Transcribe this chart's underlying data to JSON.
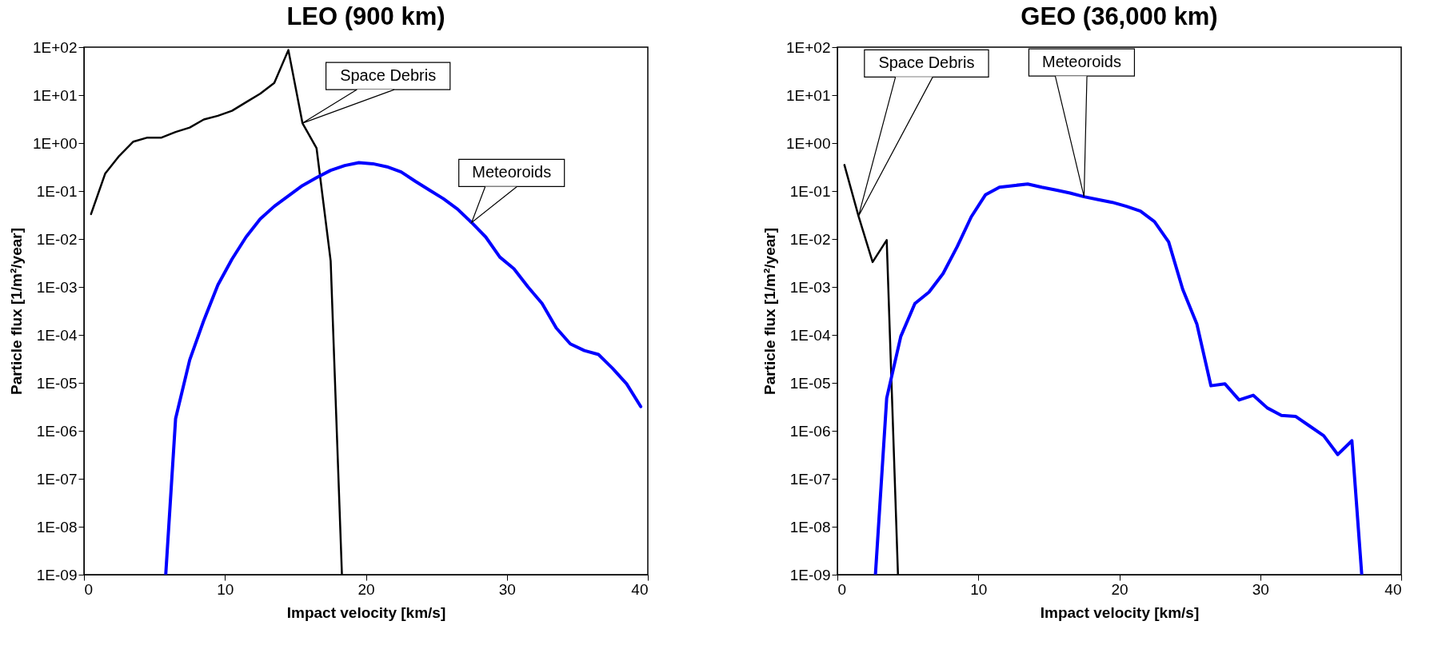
{
  "chart_data": [
    {
      "type": "line",
      "title": "LEO (900 km)",
      "xlabel": "Impact velocity [km/s]",
      "ylabel": "Particle flux [1/m²/year]",
      "log": true,
      "grid": false,
      "marker": "none",
      "line_style": "solid",
      "xlim": [
        0,
        40
      ],
      "xticks": [
        0,
        10,
        20,
        30,
        40
      ],
      "ylim": [
        1e-09,
        100
      ],
      "yticks": [
        {
          "value": 1e-09,
          "label": "1E-09"
        },
        {
          "value": 1e-08,
          "label": "1E-08"
        },
        {
          "value": 1e-07,
          "label": "1E-07"
        },
        {
          "value": 1e-06,
          "label": "1E-06"
        },
        {
          "value": 1e-05,
          "label": "1E-05"
        },
        {
          "value": 0.0001,
          "label": "1E-04"
        },
        {
          "value": 0.001,
          "label": "1E-03"
        },
        {
          "value": 0.01,
          "label": "1E-02"
        },
        {
          "value": 0.1,
          "label": "1E-01"
        },
        {
          "value": 1,
          "label": "1E+00"
        },
        {
          "value": 10,
          "label": "1E+01"
        },
        {
          "value": 100,
          "label": "1E+02"
        }
      ],
      "series": [
        {
          "name": "Space Debris",
          "color": "#000000",
          "x": [
            0.5,
            1.5,
            2.5,
            3.5,
            4.5,
            5.5,
            6.5,
            7.5,
            8.5,
            9.5,
            10.5,
            11.5,
            12.5,
            13.5,
            14.5,
            15.5,
            16.5,
            17.5,
            18.3
          ],
          "values": [
            0.033,
            0.23,
            0.54,
            1.07,
            1.3,
            1.3,
            1.7,
            2.1,
            3.1,
            3.7,
            4.7,
            7.1,
            10.7,
            18,
            87,
            2.6,
            0.78,
            0.0035,
            1e-09
          ]
        },
        {
          "name": "Meteoroids",
          "color": "#0000ff",
          "x": [
            5.8,
            6.5,
            7.5,
            8.5,
            9.5,
            10.5,
            11.5,
            12.5,
            13.5,
            14.5,
            15.5,
            16.5,
            17.5,
            18.5,
            19.5,
            20.5,
            21.5,
            22.5,
            23.5,
            24.5,
            25.5,
            26.5,
            27.5,
            28.5,
            29.5,
            30.5,
            31.5,
            32.5,
            33.5,
            34.5,
            35.5,
            36.5,
            37.5,
            38.5,
            39.5
          ],
          "values": [
            1e-09,
            1.8e-06,
            3e-05,
            0.0002,
            0.0011,
            0.0038,
            0.011,
            0.026,
            0.048,
            0.079,
            0.13,
            0.19,
            0.27,
            0.34,
            0.39,
            0.37,
            0.32,
            0.25,
            0.16,
            0.105,
            0.069,
            0.042,
            0.022,
            0.011,
            0.0042,
            0.0024,
            0.001,
            0.00045,
            0.00014,
            6.5e-05,
            4.7e-05,
            3.9e-05,
            2e-05,
            9.5e-06,
            3.2e-06
          ]
        }
      ]
    },
    {
      "type": "line",
      "title": "GEO (36,000 km)",
      "xlabel": "Impact velocity [km/s]",
      "ylabel": "Particle flux [1/m²/year]",
      "log": true,
      "grid": false,
      "marker": "none",
      "line_style": "solid",
      "xlim": [
        0,
        40
      ],
      "xticks": [
        0,
        10,
        20,
        30,
        40
      ],
      "ylim": [
        1e-09,
        100
      ],
      "yticks": [
        {
          "value": 1e-09,
          "label": "1E-09"
        },
        {
          "value": 1e-08,
          "label": "1E-08"
        },
        {
          "value": 1e-07,
          "label": "1E-07"
        },
        {
          "value": 1e-06,
          "label": "1E-06"
        },
        {
          "value": 1e-05,
          "label": "1E-05"
        },
        {
          "value": 0.0001,
          "label": "1E-04"
        },
        {
          "value": 0.001,
          "label": "1E-03"
        },
        {
          "value": 0.01,
          "label": "1E-02"
        },
        {
          "value": 0.1,
          "label": "1E-01"
        },
        {
          "value": 1,
          "label": "1E+00"
        },
        {
          "value": 10,
          "label": "1E+01"
        },
        {
          "value": 100,
          "label": "1E+02"
        }
      ],
      "series": [
        {
          "name": "Space Debris",
          "color": "#000000",
          "x": [
            0.5,
            1.5,
            2.5,
            3.5,
            4.3
          ],
          "values": [
            0.35,
            0.03,
            0.0033,
            0.0095,
            1e-09
          ]
        },
        {
          "name": "Meteoroids",
          "color": "#0000ff",
          "x": [
            2.7,
            3.5,
            4.5,
            5.5,
            6.5,
            7.5,
            8.5,
            9.5,
            10.5,
            11.5,
            12.5,
            13.5,
            14.5,
            15.5,
            16.5,
            17.5,
            18.5,
            19.5,
            20.5,
            21.5,
            22.5,
            23.5,
            24.5,
            25.5,
            26.5,
            27.5,
            28.5,
            29.5,
            30.5,
            31.5,
            32.5,
            33.5,
            34.5,
            35.5,
            36.5,
            37.2
          ],
          "values": [
            1e-09,
            4.8e-06,
            9.3e-05,
            0.00045,
            0.00078,
            0.0019,
            0.0069,
            0.029,
            0.083,
            0.12,
            0.13,
            0.14,
            0.12,
            0.105,
            0.091,
            0.076,
            0.066,
            0.058,
            0.048,
            0.038,
            0.023,
            0.0087,
            0.00089,
            0.00017,
            8.7e-06,
            9.5e-06,
            4.4e-06,
            5.5e-06,
            3e-06,
            2.1e-06,
            2e-06,
            1.26e-06,
            7.9e-07,
            3.2e-07,
            6.2e-07,
            1e-09
          ]
        }
      ]
    }
  ]
}
